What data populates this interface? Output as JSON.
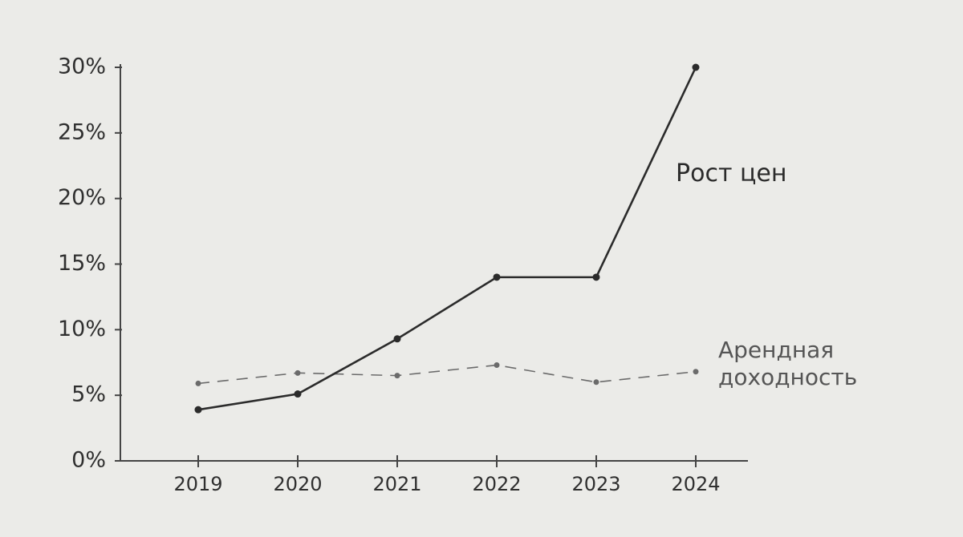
{
  "chart_data": {
    "type": "line",
    "categories": [
      "2019",
      "2020",
      "2021",
      "2022",
      "2023",
      "2024"
    ],
    "series": [
      {
        "name": "Рост цен",
        "color": "#2b2b2b",
        "dashed": false,
        "values": [
          3.9,
          5.1,
          9.3,
          14,
          14,
          30
        ]
      },
      {
        "name": "Арендная доходность",
        "color": "#6b6b6b",
        "dashed": true,
        "values": [
          5.9,
          6.7,
          6.5,
          7.3,
          6.0,
          6.8
        ]
      }
    ],
    "ylim": [
      0,
      30
    ],
    "yticks": [
      {
        "value": 0,
        "label": "0%"
      },
      {
        "value": 5,
        "label": "5%"
      },
      {
        "value": 10,
        "label": "10%"
      },
      {
        "value": 15,
        "label": "15%"
      },
      {
        "value": 20,
        "label": "20%"
      },
      {
        "value": 25,
        "label": "25%"
      },
      {
        "value": 30,
        "label": "30%"
      }
    ],
    "grid": false
  }
}
